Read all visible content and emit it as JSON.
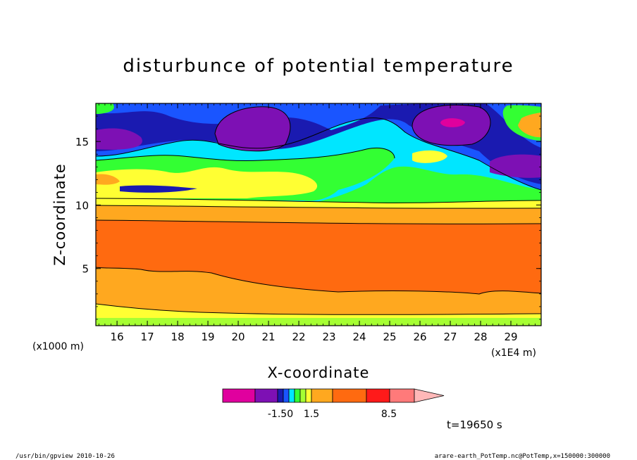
{
  "chart_data": {
    "type": "heatmap",
    "title": "disturbunce of potential temperature",
    "xlabel": "X-coordinate",
    "ylabel": "Z-coordinate",
    "x_unit_left": "(x1000 m)",
    "x_unit_right": "(x1E4 m)",
    "xlim": [
      15.3,
      30
    ],
    "ylim": [
      0.5,
      18
    ],
    "x_ticks": [
      "16",
      "17",
      "18",
      "19",
      "20",
      "21",
      "22",
      "23",
      "24",
      "25",
      "26",
      "27",
      "28",
      "29"
    ],
    "y_ticks": [
      "5",
      "10",
      "15"
    ],
    "time_label": "t=19650 s",
    "colorbar": {
      "colors": [
        "#e0009e",
        "#7d10b4",
        "#1a1ab0",
        "#1a55ff",
        "#00e6ff",
        "#33ff33",
        "#a6ff33",
        "#ffff33",
        "#ffa81f",
        "#ff6a10",
        "#ff1a1a",
        "#ff7a7a",
        "#ffb8b8"
      ],
      "labels": [
        "-1.50",
        "1.5",
        "8.5"
      ]
    },
    "layers": [
      {
        "level": "warm_bottom",
        "color": "#ffa81f"
      },
      {
        "level": "hot_core",
        "color": "#ff6a10"
      },
      {
        "level": "upper_mixed",
        "color": "#00e6ff"
      }
    ]
  },
  "footer": {
    "left": "/usr/bin/gpview   2010-10-26",
    "right": "arare-earth_PotTemp.nc@PotTemp,x=150000:300000"
  }
}
